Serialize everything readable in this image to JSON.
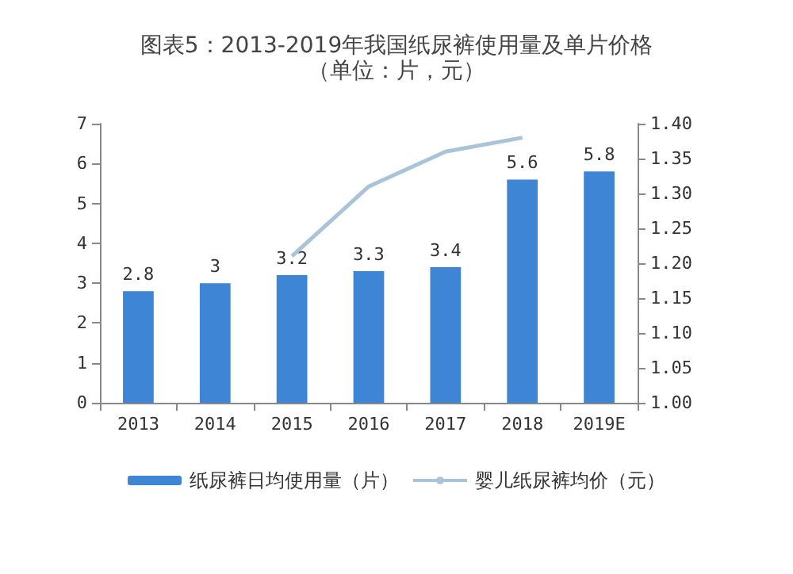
{
  "chart_data": {
    "type": "bar",
    "title": "图表5：2013-2019年我国纸尿裤使用量及单片价格（单位：片，元）",
    "categories": [
      "2013",
      "2014",
      "2015",
      "2016",
      "2017",
      "2018",
      "2019E"
    ],
    "series": [
      {
        "name": "纸尿裤日均使用量（片）",
        "color": "#3f85d6",
        "values": [
          2.8,
          3,
          3.2,
          3.3,
          3.4,
          5.6,
          5.8
        ],
        "data_labels": true
      },
      {
        "name": "婴儿纸尿裤均价（元）",
        "type": "line",
        "axis": "y2",
        "color": "#a9c4d6",
        "values": [
          null,
          null,
          1.21,
          1.31,
          1.36,
          1.38,
          null
        ]
      }
    ],
    "ylim": [
      0,
      7
    ],
    "yticks": [
      0,
      1,
      2,
      3,
      4,
      5,
      6,
      7
    ],
    "y2lim": [
      1.0,
      1.4
    ],
    "y2ticks": [
      {
        "value": 1.0,
        "label": "1.00"
      },
      {
        "value": 1.05,
        "label": "1.05"
      },
      {
        "value": 1.1,
        "label": "1.10"
      },
      {
        "value": 1.15,
        "label": "1.15"
      },
      {
        "value": 1.2,
        "label": "1.20"
      },
      {
        "value": 1.25,
        "label": "1.25"
      },
      {
        "value": 1.3,
        "label": "1.30"
      },
      {
        "value": 1.35,
        "label": "1.35"
      },
      {
        "value": 1.4,
        "label": "1.40"
      }
    ],
    "grid": false,
    "legend": "bottom",
    "marker": "none"
  }
}
